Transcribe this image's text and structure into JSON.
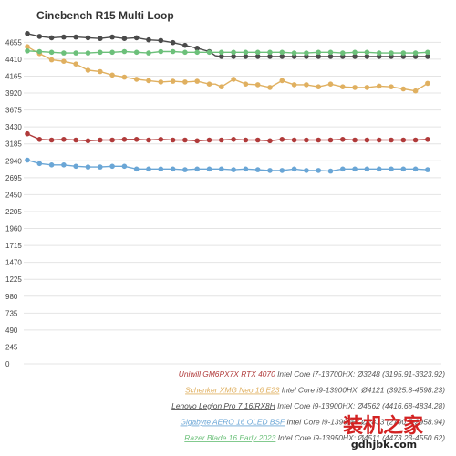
{
  "chart_data": {
    "type": "line",
    "title": "Cinebench R15 Multi Loop",
    "xlabel": "",
    "ylabel": "",
    "ylim": [
      0,
      4910
    ],
    "yticks": [
      0,
      245,
      490,
      735,
      980,
      1225,
      1470,
      1715,
      1960,
      2205,
      2450,
      2695,
      2940,
      3185,
      3430,
      3675,
      3920,
      4165,
      4410,
      4655
    ],
    "grid": true,
    "legend_position": "bottom-right",
    "x": [
      1,
      2,
      3,
      4,
      5,
      6,
      7,
      8,
      9,
      10,
      11,
      12,
      13,
      14,
      15,
      16,
      16.5,
      17,
      18,
      19,
      20,
      21,
      22,
      23,
      24,
      25,
      26,
      27,
      28,
      29,
      30,
      31,
      32,
      33,
      34
    ],
    "series": [
      {
        "name": "Uniwill GM6PX7X RTX 4070",
        "legend_rest": " Intel Core i7-13700HX: Ø3248 (3195.91-3323.92)",
        "color": "#b03a3a",
        "values": [
          3330,
          3250,
          3240,
          3250,
          3240,
          3230,
          3240,
          3240,
          3250,
          3250,
          3240,
          3250,
          3240,
          3240,
          3230,
          3240,
          3240,
          3240,
          3250,
          3240,
          3240,
          3230,
          3250,
          3240,
          3240,
          3240,
          3240,
          3250,
          3240,
          3240,
          3240,
          3240,
          3240,
          3240,
          3250
        ]
      },
      {
        "name": "Schenker XMG Neo 16 E23",
        "legend_rest": " Intel Core i9-13900HX: Ø4121 (3925.8-4598.23)",
        "color": "#e0b060",
        "values": [
          4590,
          4490,
          4400,
          4380,
          4340,
          4250,
          4230,
          4180,
          4150,
          4120,
          4100,
          4080,
          4090,
          4080,
          4090,
          4050,
          4050,
          4010,
          4120,
          4050,
          4040,
          4000,
          4100,
          4040,
          4040,
          4010,
          4050,
          4010,
          4000,
          4000,
          4020,
          4010,
          3980,
          3950,
          4060
        ]
      },
      {
        "name": "Lenovo Legion Pro 7 16IRX8H",
        "legend_rest": " Intel Core i9-13900HX: Ø4562 (4416.68-4834.28)",
        "color": "#4a4a4a",
        "values": [
          4780,
          4740,
          4720,
          4730,
          4730,
          4720,
          4710,
          4730,
          4710,
          4720,
          4690,
          4680,
          4650,
          4610,
          4570,
          4520,
          4460,
          4450,
          4450,
          4450,
          4450,
          4450,
          4450,
          4450,
          4450,
          4450,
          4450,
          4450,
          4450,
          4450,
          4450,
          4450,
          4450,
          4450,
          4450
        ]
      },
      {
        "name": "Gigabyte AERO 16 OLED BSF",
        "legend_rest": " Intel Core i9-13900H: Ø2833 (2790.5-2958.94)",
        "color": "#6aa6d6",
        "values": [
          2950,
          2900,
          2880,
          2880,
          2860,
          2850,
          2850,
          2860,
          2860,
          2820,
          2820,
          2820,
          2820,
          2810,
          2820,
          2820,
          2820,
          2820,
          2810,
          2820,
          2810,
          2800,
          2800,
          2820,
          2800,
          2800,
          2790,
          2820,
          2820,
          2820,
          2820,
          2820,
          2820,
          2820,
          2810
        ]
      },
      {
        "name": "Razer Blade 16 Early 2023",
        "legend_rest": " Intel Core i9-13950HX: Ø4511 (4473.23-4550.62)",
        "color": "#6cc07a",
        "values": [
          4530,
          4520,
          4510,
          4500,
          4500,
          4500,
          4510,
          4510,
          4520,
          4510,
          4500,
          4520,
          4520,
          4510,
          4510,
          4510,
          4510,
          4510,
          4510,
          4510,
          4510,
          4510,
          4510,
          4500,
          4500,
          4510,
          4510,
          4500,
          4510,
          4510,
          4500,
          4500,
          4500,
          4500,
          4510
        ]
      }
    ]
  },
  "watermark": {
    "cn_text": "装机之家",
    "url_text": "gdhjbk.com"
  }
}
